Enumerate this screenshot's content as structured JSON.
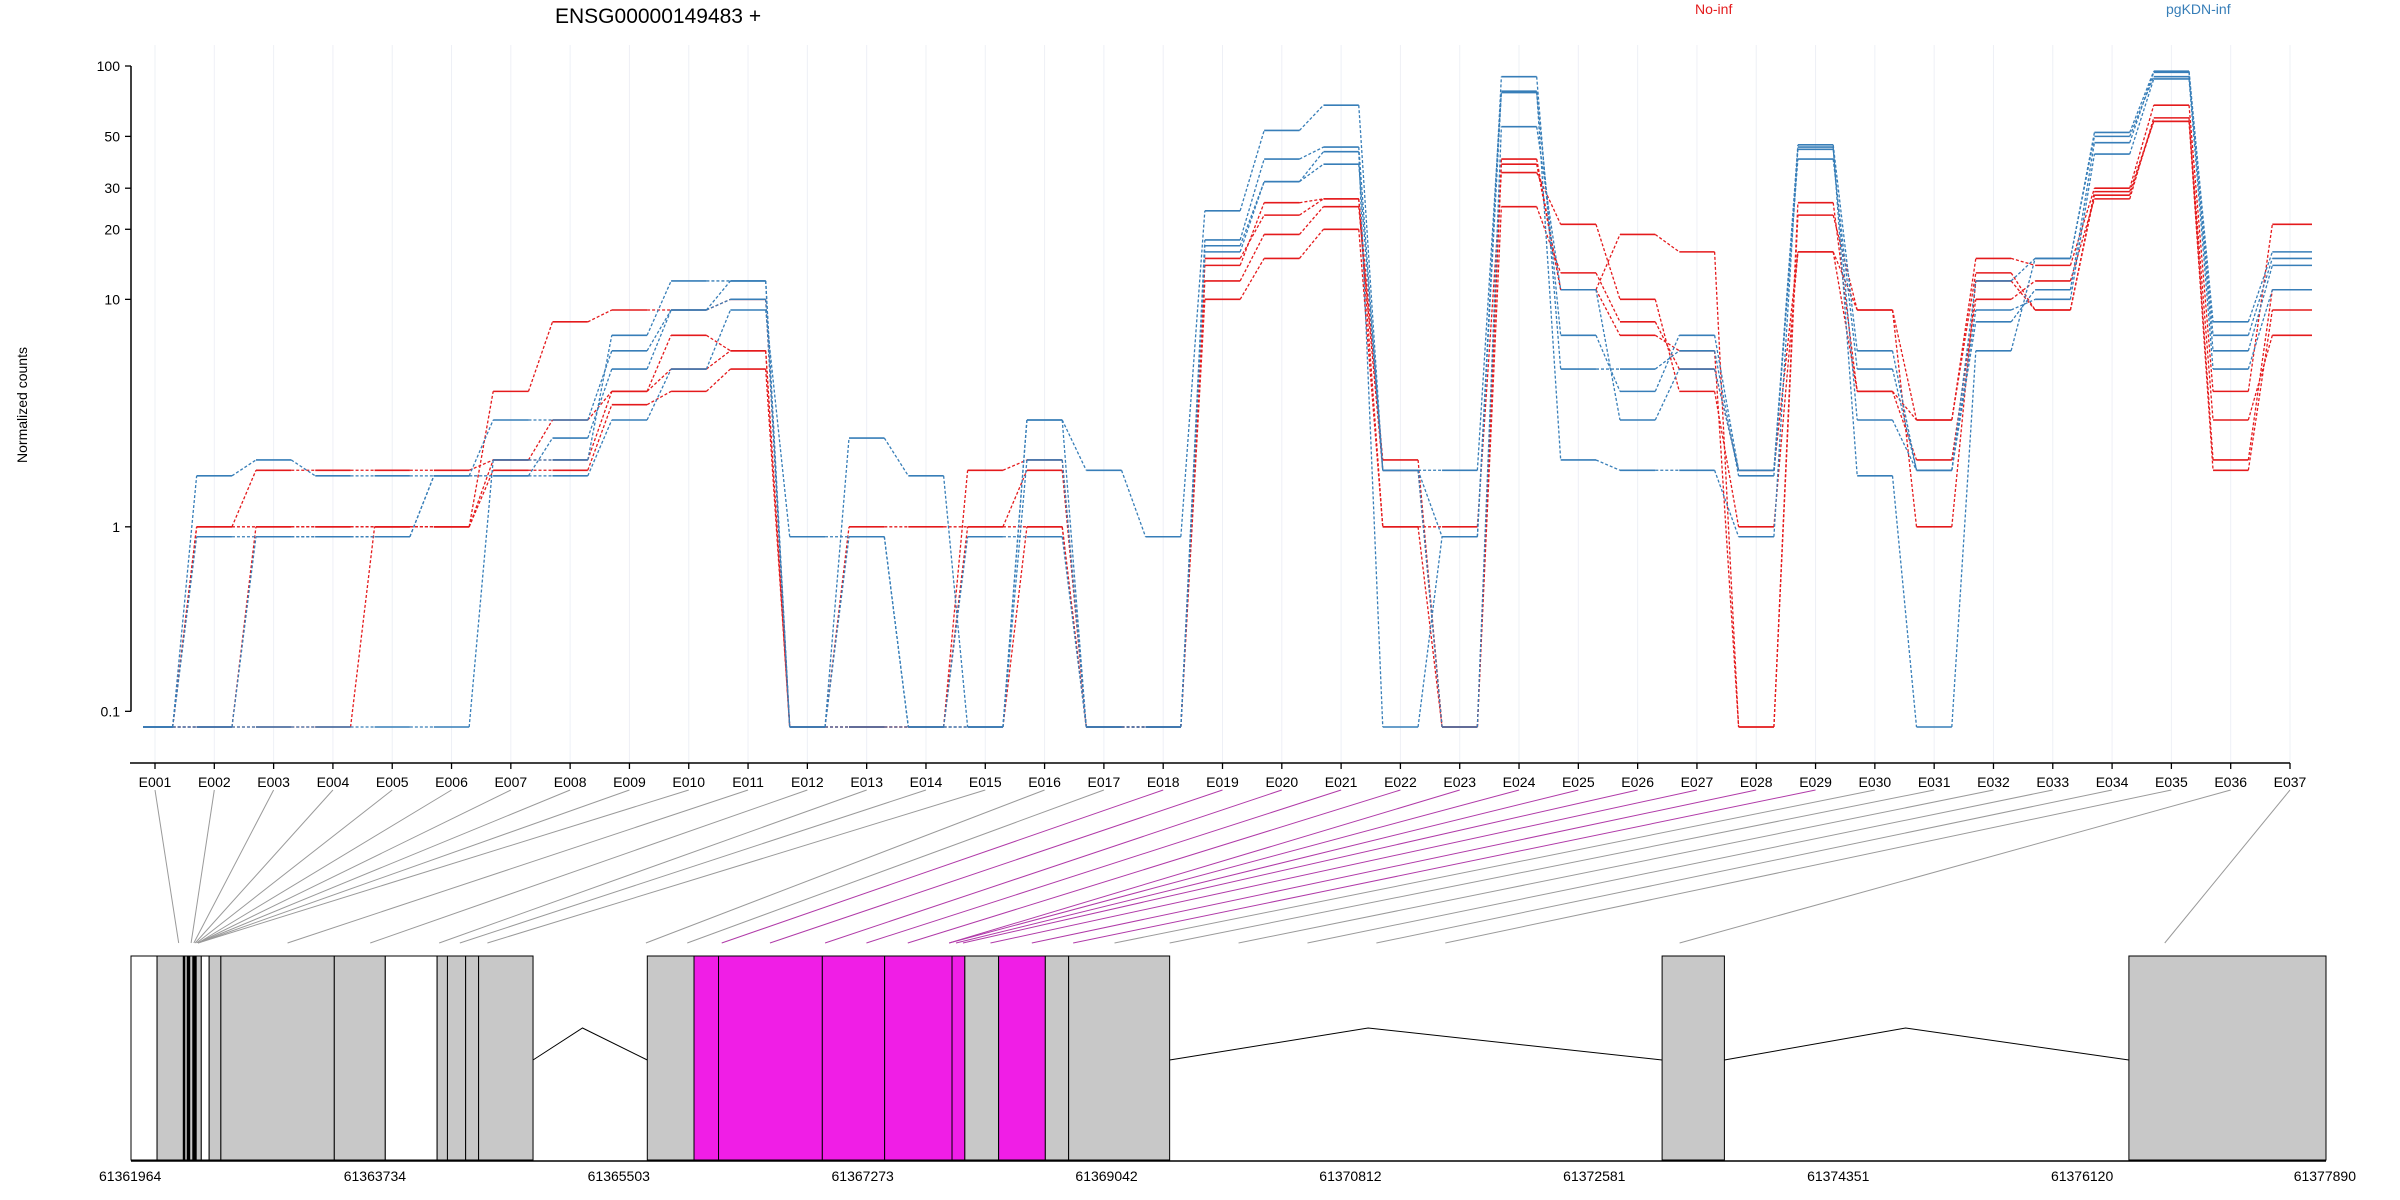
{
  "chart_data": {
    "type": "line",
    "title": "ENSG00000149483 +",
    "ylabel": "Normalized counts",
    "y_scale": "log (pseudocount-offset)",
    "ylim": [
      0.075,
      100
    ],
    "yticks": [
      0.1,
      1,
      10,
      20,
      30,
      50,
      100
    ],
    "ytick_labels": [
      "0.1",
      "1",
      "10",
      "20",
      "30",
      "50",
      "100"
    ],
    "categories": [
      "E001",
      "E002",
      "E003",
      "E004",
      "E005",
      "E006",
      "E007",
      "E008",
      "E009",
      "E010",
      "E011",
      "E012",
      "E013",
      "E014",
      "E015",
      "E016",
      "E017",
      "E018",
      "E019",
      "E020",
      "E021",
      "E022",
      "E023",
      "E024",
      "E025",
      "E026",
      "E027",
      "E028",
      "E029",
      "E030",
      "E031",
      "E032",
      "E033",
      "E034",
      "E035",
      "E036",
      "E037"
    ],
    "groups": [
      {
        "name": "No-inf",
        "color": "#e41a1c"
      },
      {
        "name": "pgKDN-inf",
        "color": "#377eb8"
      }
    ],
    "series": [
      {
        "group": "No-inf",
        "values": [
          0.075,
          1,
          1.8,
          1.8,
          1.8,
          1.8,
          2,
          2,
          4,
          5,
          6,
          0.075,
          0.075,
          0.075,
          1.8,
          2,
          0.075,
          0.075,
          12,
          19,
          25,
          1.8,
          0.075,
          25,
          13,
          8,
          5,
          1.8,
          16,
          9,
          1,
          12,
          9,
          28,
          58,
          1.8,
          9
        ]
      },
      {
        "group": "No-inf",
        "values": [
          0.075,
          1,
          1,
          1,
          1,
          1,
          1.8,
          1.8,
          3.5,
          4,
          5,
          0.075,
          1,
          1,
          1,
          1,
          0.075,
          0.075,
          10,
          15,
          20,
          1,
          1,
          35,
          21,
          10,
          4,
          1,
          16,
          4,
          2,
          10,
          12,
          27,
          60,
          2,
          11
        ]
      },
      {
        "group": "No-inf",
        "values": [
          0.075,
          0.075,
          1,
          1,
          1,
          1,
          2,
          3,
          4,
          7,
          6,
          0.075,
          0.075,
          0.075,
          0.075,
          1,
          0.075,
          0.075,
          15,
          23,
          27,
          1,
          0.075,
          40,
          11,
          7,
          6,
          0.075,
          23,
          9,
          3,
          15,
          14,
          30,
          68,
          4,
          21
        ]
      },
      {
        "group": "No-inf",
        "values": [
          0.075,
          0.075,
          0.075,
          0.075,
          1,
          1,
          4,
          8,
          9,
          9,
          10,
          0.075,
          0.075,
          0.075,
          1,
          1.8,
          0.075,
          0.075,
          14,
          26,
          27,
          2,
          0.075,
          38,
          11,
          19,
          16,
          0.075,
          26,
          4,
          3,
          13,
          9,
          29,
          58,
          3,
          7
        ]
      },
      {
        "group": "pgKDN-inf",
        "values": [
          0.075,
          1.7,
          2,
          1.7,
          1.7,
          1.7,
          1.7,
          1.7,
          3,
          5,
          9,
          0.9,
          0.9,
          0.075,
          0.9,
          0.9,
          0.075,
          0.075,
          18,
          40,
          45,
          1.8,
          0.9,
          77,
          7,
          4,
          7,
          1.8,
          46,
          6,
          1.8,
          12,
          15,
          50,
          90,
          7,
          15
        ]
      },
      {
        "group": "pgKDN-inf",
        "values": [
          0.075,
          0.9,
          0.9,
          0.9,
          0.9,
          1.7,
          3,
          3,
          6,
          9,
          12,
          0.075,
          0.9,
          0.075,
          0.075,
          3,
          0.075,
          0.075,
          17,
          32,
          43,
          0.075,
          0.9,
          90,
          5,
          5,
          6,
          1.7,
          44,
          3,
          1.8,
          8,
          11,
          47,
          94,
          6,
          14
        ]
      },
      {
        "group": "pgKDN-inf",
        "values": [
          0.075,
          0.075,
          0.9,
          0.9,
          0.9,
          1.7,
          1.7,
          2.5,
          5,
          9,
          10,
          0.075,
          0.075,
          0.075,
          0.075,
          2,
          0.075,
          0.075,
          16,
          32,
          38,
          1.8,
          0.075,
          55,
          11,
          3,
          5,
          1.8,
          40,
          5,
          1.8,
          9,
          10,
          42,
          88,
          5,
          11
        ]
      },
      {
        "group": "pgKDN-inf",
        "values": [
          0.075,
          0.075,
          0.075,
          0.075,
          0.075,
          0.075,
          2,
          2,
          7,
          12,
          12,
          0.075,
          2.5,
          1.7,
          0.075,
          3,
          1.8,
          0.9,
          24,
          53,
          68,
          1.8,
          1.8,
          78,
          2,
          1.8,
          1.8,
          0.9,
          45,
          1.7,
          0.075,
          6,
          15,
          52,
          95,
          8,
          16
        ]
      }
    ],
    "genomic_axis": {
      "tick_labels": [
        "61361964",
        "61363734",
        "61365503",
        "61367273",
        "61369042",
        "61370812",
        "61372581",
        "61374351",
        "61376120",
        "61377890"
      ],
      "range": [
        61361964,
        61377890
      ]
    },
    "gene_model": {
      "exon_blocks": [
        {
          "start": 61361964,
          "end": 61362153,
          "color": "#ffffff"
        },
        {
          "start": 61362153,
          "end": 61362344,
          "color": "#c8c8c8"
        },
        {
          "start": 61362344,
          "end": 61362354,
          "color": "#000000"
        },
        {
          "start": 61362354,
          "end": 61362373,
          "color": "#c8c8c8"
        },
        {
          "start": 61362373,
          "end": 61362390,
          "color": "#000000"
        },
        {
          "start": 61362390,
          "end": 61362413,
          "color": "#c8c8c8"
        },
        {
          "start": 61362413,
          "end": 61362437,
          "color": "#000000"
        },
        {
          "start": 61362437,
          "end": 61362474,
          "color": "#c8c8c8"
        },
        {
          "start": 61362474,
          "end": 61362531,
          "color": "#ffffff"
        },
        {
          "start": 61362531,
          "end": 61362616,
          "color": "#c8c8c8"
        },
        {
          "start": 61362616,
          "end": 61363439,
          "color": "#c8c8c8"
        },
        {
          "start": 61363439,
          "end": 61363809,
          "color": "#c8c8c8"
        },
        {
          "start": 61363809,
          "end": 61364185,
          "color": "#ffffff"
        },
        {
          "start": 61364185,
          "end": 61364260,
          "color": "#c8c8c8"
        },
        {
          "start": 61364260,
          "end": 61364392,
          "color": "#c8c8c8"
        },
        {
          "start": 61364392,
          "end": 61364486,
          "color": "#c8c8c8"
        },
        {
          "start": 61364486,
          "end": 61364881,
          "color": "#c8c8c8"
        },
        {
          "start": 61365710,
          "end": 61366049,
          "color": "#c8c8c8"
        },
        {
          "start": 61366049,
          "end": 61366227,
          "color": "#f01ee6"
        },
        {
          "start": 61366227,
          "end": 61366980,
          "color": "#f01ee6"
        },
        {
          "start": 61366980,
          "end": 61367432,
          "color": "#f01ee6"
        },
        {
          "start": 61367432,
          "end": 61367921,
          "color": "#f01ee6"
        },
        {
          "start": 61367921,
          "end": 61368014,
          "color": "#f01ee6"
        },
        {
          "start": 61368014,
          "end": 61368259,
          "color": "#c8c8c8"
        },
        {
          "start": 61368259,
          "end": 61368598,
          "color": "#f01ee6"
        },
        {
          "start": 61368598,
          "end": 61368767,
          "color": "#c8c8c8"
        },
        {
          "start": 61368767,
          "end": 61369500,
          "color": "#c8c8c8"
        },
        {
          "start": 61373073,
          "end": 61373525,
          "color": "#c8c8c8"
        },
        {
          "start": 61376460,
          "end": 61377890,
          "color": "#c8c8c8"
        }
      ],
      "introns": [
        {
          "start": 61364881,
          "end": 61365710,
          "peak": 61365240
        },
        {
          "start": 61369500,
          "end": 61373073,
          "peak": 61370940
        },
        {
          "start": 61373525,
          "end": 61376460,
          "peak": 61374840
        }
      ],
      "connector_targets": [
        61362310,
        61362400,
        61362420,
        61362430,
        61362440,
        61362450,
        61362450,
        61362450,
        61362450,
        61362450,
        61363100,
        61363700,
        61364200,
        61364350,
        61364550,
        61365700,
        61366000,
        61366250,
        61366600,
        61367000,
        61367300,
        61367600,
        61367900,
        61367900,
        61367950,
        61368000,
        61368200,
        61368500,
        61368800,
        61369100,
        61369500,
        61370000,
        61370500,
        61371000,
        61371500,
        61373200,
        61376720
      ],
      "connector_highlight_range": [
        17,
        28
      ]
    }
  }
}
